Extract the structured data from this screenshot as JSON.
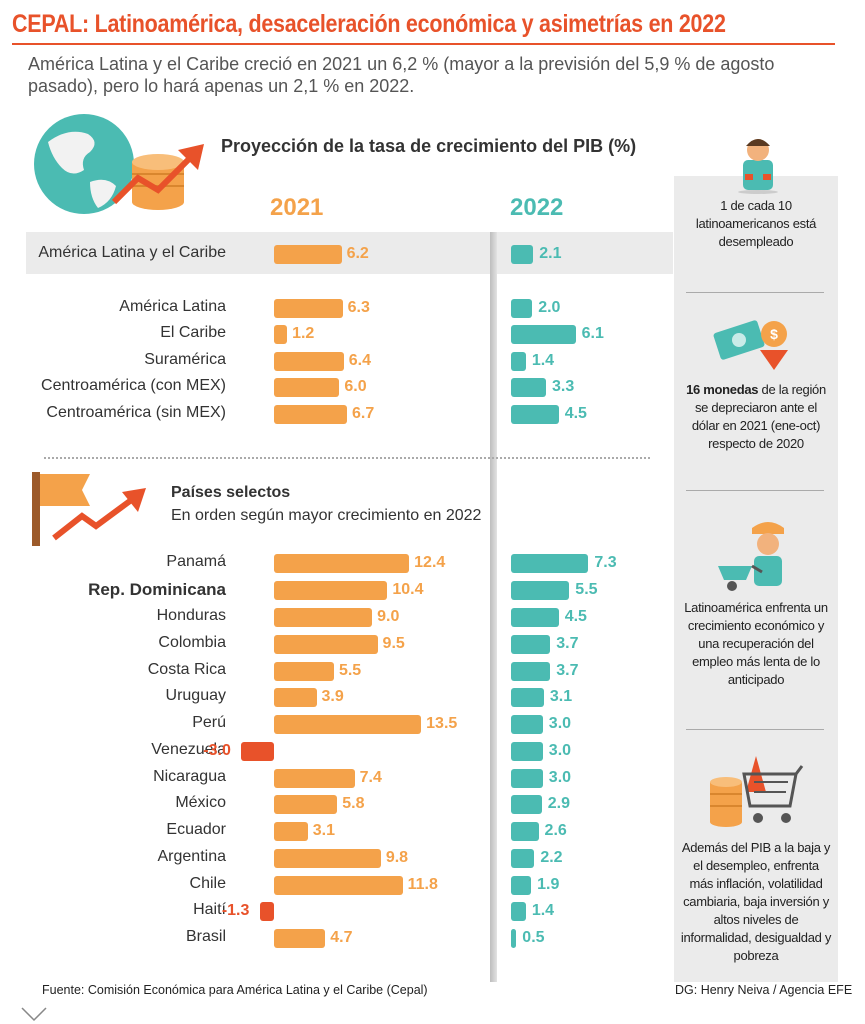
{
  "header": {
    "title": "CEPAL: Latinoamérica, desaceleración económica y asimetrías en 2022",
    "subtitle": "América Latina y el Caribe creció en 2021 un 6,2 % (mayor a la previsión del 5,9 % de agosto pasado), pero lo hará apenas un 2,1 % en 2022."
  },
  "chart_data": {
    "type": "bar",
    "title": "Proyección de la tasa de crecimiento del PIB (%)",
    "series": [
      {
        "name": "2021",
        "color": "#f4a24a"
      },
      {
        "name": "2022",
        "color": "#4bbbb2"
      }
    ],
    "regions": [
      {
        "name": "América Latina y el Caribe",
        "v2021": 6.2,
        "v2022": 2.1,
        "highlight": true
      },
      {
        "name": "América Latina",
        "v2021": 6.3,
        "v2022": 2.0
      },
      {
        "name": "El Caribe",
        "v2021": 1.2,
        "v2022": 6.1
      },
      {
        "name": "Suramérica",
        "v2021": 6.4,
        "v2022": 1.4
      },
      {
        "name": "Centroamérica (con MEX)",
        "v2021": 6.0,
        "v2022": 3.3
      },
      {
        "name": "Centroamérica (sin MEX)",
        "v2021": 6.7,
        "v2022": 4.5
      }
    ],
    "countries_title": "Países selectos",
    "countries_subtitle": "En orden según mayor crecimiento en 2022",
    "countries": [
      {
        "name": "Panamá",
        "v2021": 12.4,
        "v2022": 7.3
      },
      {
        "name": "Rep. Dominicana",
        "v2021": 10.4,
        "v2022": 5.5,
        "bold": true
      },
      {
        "name": "Honduras",
        "v2021": 9.0,
        "v2022": 4.5
      },
      {
        "name": "Colombia",
        "v2021": 9.5,
        "v2022": 3.7
      },
      {
        "name": "Costa Rica",
        "v2021": 5.5,
        "v2022": 3.7
      },
      {
        "name": "Uruguay",
        "v2021": 3.9,
        "v2022": 3.1
      },
      {
        "name": "Perú",
        "v2021": 13.5,
        "v2022": 3.0
      },
      {
        "name": "Venezuela",
        "v2021": -3.0,
        "v2022": 3.0
      },
      {
        "name": "Nicaragua",
        "v2021": 7.4,
        "v2022": 3.0
      },
      {
        "name": "México",
        "v2021": 5.8,
        "v2022": 2.9
      },
      {
        "name": "Ecuador",
        "v2021": 3.1,
        "v2022": 2.6
      },
      {
        "name": "Argentina",
        "v2021": 9.8,
        "v2022": 2.2
      },
      {
        "name": "Chile",
        "v2021": 11.8,
        "v2022": 1.9
      },
      {
        "name": "Haití",
        "v2021": -1.3,
        "v2022": 1.4
      },
      {
        "name": "Brasil",
        "v2021": 4.7,
        "v2022": 0.5
      }
    ]
  },
  "sidebar": {
    "fact1": "1 de cada 10 latinoamericanos está desempleado",
    "fact2_bold": "16 monedas",
    "fact2_rest": " de la región se depreciaron ante el dólar en 2021 (ene-oct) respecto de 2020",
    "fact3": "Latinoamérica enfrenta un crecimiento económico y una recuperación del empleo más lenta de lo anticipado",
    "fact4": "Además del PIB a la baja y el desempleo, enfrenta más inflación, volatilidad cambiaria, baja inversión y altos niveles de informalidad, desigualdad y pobreza"
  },
  "footer": {
    "source": "Fuente: Comisión Económica para América Latina y el Caribe (Cepal)",
    "credit": "DG: Henry Neiva / Agencia EFE"
  },
  "colors": {
    "accent": "#e8522a",
    "orange": "#f4a24a",
    "teal": "#4bbbb2",
    "panel": "#ebebeb"
  }
}
